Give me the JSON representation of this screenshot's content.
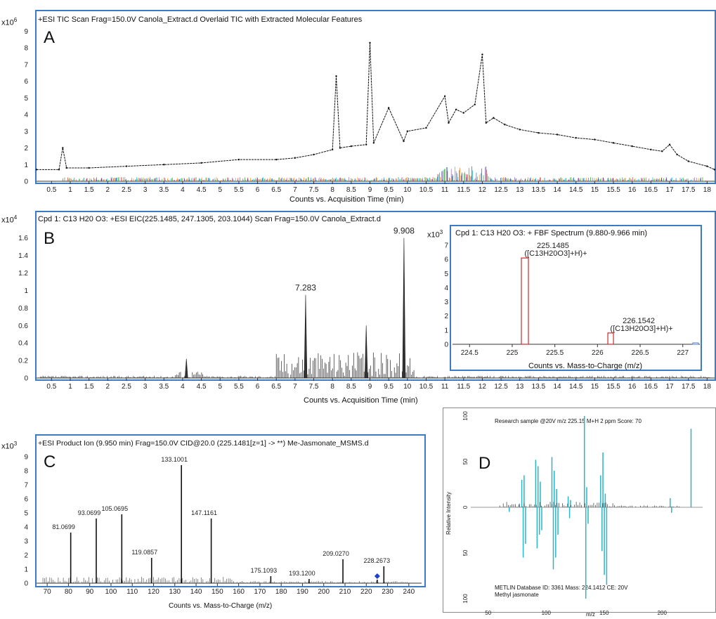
{
  "figure": {
    "panel_a": {
      "letter": "A",
      "title": "+ESI TIC Scan  Frag=150.0V Canola_Extract.d   Overlaid TIC with Extracted Molecular Features",
      "multiplier": "x10",
      "multiplier_exp": "6",
      "xlabel": "Counts vs. Acquisition Time (min)"
    },
    "panel_b": {
      "letter": "B",
      "title": "Cpd 1: C13 H20 O3: +ESI EIC(225.1485, 247.1305, 203.1044) Scan Frag=150.0V Canola_Extract.d",
      "multiplier": "x10",
      "multiplier_exp": "4",
      "xlabel": "Counts vs. Acquisition Time (min)"
    },
    "panel_b_inset": {
      "title": "Cpd 1: C13 H20 O3: + FBF Spectrum (9.880-9.966 min)",
      "multiplier": "x10",
      "multiplier_exp": "3",
      "xlabel": "Counts vs. Mass-to-Charge (m/z)"
    },
    "panel_c": {
      "letter": "C",
      "title": "+ESI Product Ion (9.950 min) Frag=150.0V CID@20.0 (225.1481[z=1] -> **) Me-Jasmonate_MSMS.d",
      "multiplier": "x10",
      "multiplier_exp": "3",
      "xlabel": "Counts vs. Mass-to-Charge (m/z)"
    },
    "panel_d": {
      "letter": "D",
      "header": "Research sample @20V  m/z 225.15 M+H 2 ppm  Score: 70",
      "footer_line1": "METLIN Database ID: 3361  Mass: 224.1412 CE: 20V",
      "footer_line2": "Methyl jasmonate",
      "ylabel": "Relative Intensity",
      "xlabel": "m/z"
    }
  },
  "chart_data": [
    {
      "type": "line",
      "panel": "A",
      "x_ticks": [
        "0.5",
        "1",
        "1.5",
        "2",
        "2.5",
        "3",
        "3.5",
        "4",
        "4.5",
        "5",
        "5.5",
        "6",
        "6.5",
        "7",
        "7.5",
        "8",
        "8.5",
        "9",
        "9.5",
        "10",
        "10.5",
        "11",
        "11.5",
        "12",
        "12.5",
        "13",
        "13.5",
        "14",
        "14.5",
        "15",
        "15.5",
        "16",
        "16.5",
        "17",
        "17.5",
        "18"
      ],
      "y_ticks": [
        "0",
        "1",
        "2",
        "3",
        "4",
        "5",
        "6",
        "7",
        "8",
        "9"
      ],
      "xlim": [
        0.1,
        18.2
      ],
      "ylim": [
        0,
        9.6
      ],
      "series": [
        {
          "color": "#111111",
          "x": [
            0.1,
            0.7,
            0.8,
            0.9,
            1.5,
            2.5,
            3.5,
            4.5,
            5.5,
            6.5,
            7.0,
            7.5,
            8.0,
            8.1,
            8.2,
            8.5,
            8.9,
            9.0,
            9.1,
            9.5,
            9.9,
            10.0,
            10.5,
            11.0,
            11.1,
            11.3,
            11.5,
            11.8,
            12.0,
            12.1,
            12.3,
            12.6,
            13.0,
            13.5,
            14.0,
            14.5,
            15.0,
            15.5,
            16.0,
            16.5,
            16.8,
            17.0,
            17.2,
            17.5,
            18.0,
            18.2
          ],
          "y": [
            0.7,
            0.7,
            2.0,
            0.8,
            0.8,
            0.9,
            1.0,
            1.1,
            1.3,
            1.3,
            1.4,
            1.6,
            1.9,
            6.3,
            2.0,
            2.1,
            2.2,
            8.3,
            2.3,
            4.4,
            2.4,
            3.0,
            3.2,
            5.1,
            3.5,
            4.3,
            4.1,
            4.6,
            7.6,
            3.5,
            3.8,
            3.4,
            3.1,
            2.9,
            2.8,
            2.6,
            2.5,
            2.3,
            2.1,
            1.9,
            1.8,
            2.2,
            1.6,
            1.2,
            0.9,
            0.7
          ]
        }
      ],
      "feature_colors": [
        "#d62728",
        "#2ca02c",
        "#9467bd",
        "#17becf",
        "#ff7f0e",
        "#1f77b4"
      ]
    },
    {
      "type": "line",
      "panel": "B",
      "x_ticks": [
        "0.5",
        "1",
        "1.5",
        "2",
        "2.5",
        "3",
        "3.5",
        "4",
        "4.5",
        "5",
        "5.5",
        "6",
        "6.5",
        "7",
        "7.5",
        "8",
        "8.5",
        "9",
        "9.5",
        "10",
        "10.5",
        "11",
        "11.5",
        "12",
        "12.5",
        "13",
        "13.5",
        "14",
        "14.5",
        "15",
        "15.5",
        "16",
        "16.5",
        "17",
        "17.5",
        "18"
      ],
      "y_ticks": [
        "0",
        "0.2",
        "0.4",
        "0.6",
        "0.8",
        "1",
        "1.2",
        "1.4",
        "1.6"
      ],
      "xlim": [
        0.1,
        18.2
      ],
      "ylim": [
        0,
        1.75
      ],
      "peak_labels": [
        {
          "x": 7.283,
          "y": 0.95,
          "label": "7.283"
        },
        {
          "x": 9.908,
          "y": 1.6,
          "label": "9.908"
        }
      ],
      "x": [
        4.1,
        7.283,
        8.9,
        9.908
      ],
      "y": [
        0.22,
        0.95,
        0.6,
        1.6
      ]
    },
    {
      "type": "bar",
      "panel": "B-inset",
      "x_ticks": [
        "224.5",
        "225",
        "225.5",
        "226",
        "226.5",
        "227"
      ],
      "y_ticks": [
        "0",
        "1",
        "2",
        "3",
        "4",
        "5",
        "6",
        "7"
      ],
      "xlim": [
        224.3,
        227.2
      ],
      "ylim": [
        0,
        7.2
      ],
      "peaks": [
        {
          "x": 225.1485,
          "y": 6.1,
          "label1": "225.1485",
          "label2": "([C13H20O3]+H)+"
        },
        {
          "x": 226.1542,
          "y": 0.8,
          "label1": "226.1542",
          "label2": "([C13H20O3]+H)+"
        },
        {
          "x": 227.15,
          "y": 0.1,
          "label1": "",
          "label2": ""
        }
      ]
    },
    {
      "type": "bar",
      "panel": "C",
      "x_ticks": [
        "70",
        "80",
        "90",
        "100",
        "110",
        "120",
        "130",
        "140",
        "150",
        "160",
        "170",
        "180",
        "190",
        "200",
        "210",
        "220",
        "230",
        "240"
      ],
      "y_ticks": [
        "0",
        "1",
        "2",
        "3",
        "4",
        "5",
        "6",
        "7",
        "8",
        "9"
      ],
      "xlim": [
        65,
        246
      ],
      "ylim": [
        0,
        9.5
      ],
      "peaks": [
        {
          "x": 81.0699,
          "y": 3.6,
          "label": "81.0699"
        },
        {
          "x": 93.0699,
          "y": 4.6,
          "label": "93.0699"
        },
        {
          "x": 105.0695,
          "y": 4.9,
          "label": "105.0695"
        },
        {
          "x": 119.0857,
          "y": 1.8,
          "label": "119.0857"
        },
        {
          "x": 133.1001,
          "y": 8.4,
          "label": "133.1001"
        },
        {
          "x": 147.1161,
          "y": 4.6,
          "label": "147.1161"
        },
        {
          "x": 175.1093,
          "y": 0.5,
          "label": "175.1093"
        },
        {
          "x": 193.12,
          "y": 0.3,
          "label": "193.1200"
        },
        {
          "x": 209.027,
          "y": 1.7,
          "label": "209.0270"
        },
        {
          "x": 225.1481,
          "y": 0.25,
          "label": ""
        },
        {
          "x": 228.2673,
          "y": 1.2,
          "label": "228.2673"
        }
      ],
      "precursor_marker_x": 225.1481
    },
    {
      "type": "bar",
      "panel": "D",
      "x_ticks": [
        "50",
        "100",
        "150",
        "200"
      ],
      "y_ticks": [
        "100",
        "50",
        "0",
        "50",
        "100"
      ],
      "xlim": [
        35,
        235
      ],
      "ylim": [
        -100,
        100
      ],
      "sample_peaks": [
        {
          "x": 77,
          "y": 4
        },
        {
          "x": 79,
          "y": 30
        },
        {
          "x": 81,
          "y": 35
        },
        {
          "x": 91,
          "y": 52
        },
        {
          "x": 93,
          "y": 45
        },
        {
          "x": 95,
          "y": 28
        },
        {
          "x": 105,
          "y": 55
        },
        {
          "x": 107,
          "y": 40
        },
        {
          "x": 109,
          "y": 20
        },
        {
          "x": 119,
          "y": 12
        },
        {
          "x": 121,
          "y": 8
        },
        {
          "x": 133,
          "y": 100
        },
        {
          "x": 135,
          "y": 22
        },
        {
          "x": 147,
          "y": 35
        },
        {
          "x": 149,
          "y": 60
        },
        {
          "x": 151,
          "y": 15
        },
        {
          "x": 207,
          "y": 10
        },
        {
          "x": 225,
          "y": 86
        }
      ],
      "reference_peaks": [
        {
          "x": 67,
          "y": -5
        },
        {
          "x": 79,
          "y": -55
        },
        {
          "x": 81,
          "y": -40
        },
        {
          "x": 91,
          "y": -45
        },
        {
          "x": 93,
          "y": -30
        },
        {
          "x": 95,
          "y": -25
        },
        {
          "x": 105,
          "y": -68
        },
        {
          "x": 107,
          "y": -55
        },
        {
          "x": 109,
          "y": -30
        },
        {
          "x": 119,
          "y": -12
        },
        {
          "x": 133,
          "y": -100
        },
        {
          "x": 135,
          "y": -18
        },
        {
          "x": 147,
          "y": -48
        },
        {
          "x": 149,
          "y": -74
        },
        {
          "x": 151,
          "y": -85
        },
        {
          "x": 207,
          "y": -6
        }
      ]
    }
  ]
}
